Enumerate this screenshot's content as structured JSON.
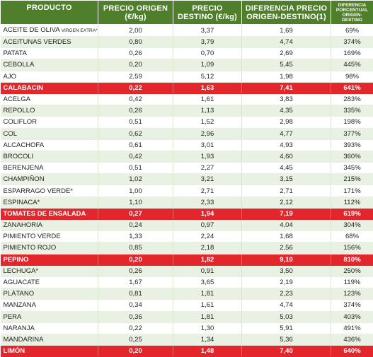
{
  "headers": {
    "producto": "PRODUCTO",
    "origen": "PRECIO ORIGEN (€/kg)",
    "destino": "PRECIO DESTINO (€/kg)",
    "diferencia": "DIFERENCIA PRECIO ORIGEN-DESTINO(1)",
    "porcentual": "DIFERENCIA PORCENTUAL ORIGEN-DESTINO"
  },
  "highlight_color": "#e3262c",
  "header_color": "#4f7f2b",
  "rows": [
    {
      "producto": "ACEITE DE OLIVA",
      "extra": "VIRGEN EXTRA*",
      "origen": "2,00",
      "destino": "3,37",
      "diferencia": "1,69",
      "porcentual": "69%",
      "highlight": false
    },
    {
      "producto": "ACEITUNAS VERDES",
      "origen": "0,80",
      "destino": "3,79",
      "diferencia": "4,74",
      "porcentual": "374%",
      "highlight": false
    },
    {
      "producto": "PATATA",
      "origen": "0,26",
      "destino": "0,70",
      "diferencia": "2,69",
      "porcentual": "169%",
      "highlight": false
    },
    {
      "producto": "CEBOLLA",
      "origen": "0,20",
      "destino": "1,09",
      "diferencia": "5,45",
      "porcentual": "445%",
      "highlight": false
    },
    {
      "producto": "AJO",
      "origen": "2,59",
      "destino": "5,12",
      "diferencia": "1,98",
      "porcentual": "98%",
      "highlight": false
    },
    {
      "producto": "CALABACIN",
      "origen": "0,22",
      "destino": "1,63",
      "diferencia": "7,41",
      "porcentual": "641%",
      "highlight": true
    },
    {
      "producto": "ACELGA",
      "origen": "0,42",
      "destino": "1,61",
      "diferencia": "3,83",
      "porcentual": "283%",
      "highlight": false
    },
    {
      "producto": "REPOLLO",
      "origen": "0,26",
      "destino": "1,13",
      "diferencia": "4,35",
      "porcentual": "335%",
      "highlight": false
    },
    {
      "producto": "COLIFLOR",
      "origen": "0,51",
      "destino": "1,52",
      "diferencia": "2,98",
      "porcentual": "198%",
      "highlight": false
    },
    {
      "producto": "COL",
      "origen": "0,62",
      "destino": "2,96",
      "diferencia": "4,77",
      "porcentual": "377%",
      "highlight": false
    },
    {
      "producto": "ALCACHOFA",
      "origen": "0,61",
      "destino": "3,01",
      "diferencia": "4,93",
      "porcentual": "393%",
      "highlight": false
    },
    {
      "producto": "BROCOLI",
      "origen": "0,42",
      "destino": "1,93",
      "diferencia": "4,60",
      "porcentual": "360%",
      "highlight": false
    },
    {
      "producto": "BERENJENA",
      "origen": "0,51",
      "destino": "2,27",
      "diferencia": "4,45",
      "porcentual": "345%",
      "highlight": false
    },
    {
      "producto": "CHAMPIÑON",
      "origen": "1,02",
      "destino": "3,21",
      "diferencia": "3,15",
      "porcentual": "215%",
      "highlight": false
    },
    {
      "producto": "ESPARRAGO VERDE*",
      "origen": "1,00",
      "destino": "2,71",
      "diferencia": "2,71",
      "porcentual": "171%",
      "highlight": false
    },
    {
      "producto": "ESPINACA*",
      "origen": "1,10",
      "destino": "2,33",
      "diferencia": "2,12",
      "porcentual": "112%",
      "highlight": false
    },
    {
      "producto": "TOMATES DE ENSALADA",
      "origen": "0,27",
      "destino": "1,94",
      "diferencia": "7,19",
      "porcentual": "619%",
      "highlight": true
    },
    {
      "producto": "ZANAHORIA",
      "origen": "0,24",
      "destino": "0,97",
      "diferencia": "4,04",
      "porcentual": "304%",
      "highlight": false
    },
    {
      "producto": "PIMIENTO VERDE",
      "origen": "1,33",
      "destino": "2,24",
      "diferencia": "1,68",
      "porcentual": "68%",
      "highlight": false
    },
    {
      "producto": "PIMIENTO ROJO",
      "origen": "0,85",
      "destino": "2,18",
      "diferencia": "2,56",
      "porcentual": "156%",
      "highlight": false
    },
    {
      "producto": "PEPINO",
      "origen": "0,20",
      "destino": "1,82",
      "diferencia": "9,10",
      "porcentual": "810%",
      "highlight": true
    },
    {
      "producto": "LECHUGA*",
      "origen": "0,26",
      "destino": "0,91",
      "diferencia": "3,50",
      "porcentual": "250%",
      "highlight": false
    },
    {
      "producto": "AGUACATE",
      "origen": "1,67",
      "destino": "3,65",
      "diferencia": "2,19",
      "porcentual": "119%",
      "highlight": false
    },
    {
      "producto": "PLÁTANO",
      "origen": "0,81",
      "destino": "1,81",
      "diferencia": "2,23",
      "porcentual": "123%",
      "highlight": false
    },
    {
      "producto": "MANZANA",
      "origen": "0,34",
      "destino": "1,61",
      "diferencia": "4,74",
      "porcentual": "374%",
      "highlight": false
    },
    {
      "producto": "PERA",
      "origen": "0,36",
      "destino": "1,81",
      "diferencia": "5,03",
      "porcentual": "403%",
      "highlight": false
    },
    {
      "producto": "NARANJA",
      "origen": "0,22",
      "destino": "1,30",
      "diferencia": "5,91",
      "porcentual": "491%",
      "highlight": false
    },
    {
      "producto": "MANDARINA",
      "origen": "0,25",
      "destino": "1,34",
      "diferencia": "5,36",
      "porcentual": "436%",
      "highlight": false
    },
    {
      "producto": "LIMÓN",
      "origen": "0,20",
      "destino": "1,48",
      "diferencia": "7,40",
      "porcentual": "640%",
      "highlight": true
    }
  ]
}
